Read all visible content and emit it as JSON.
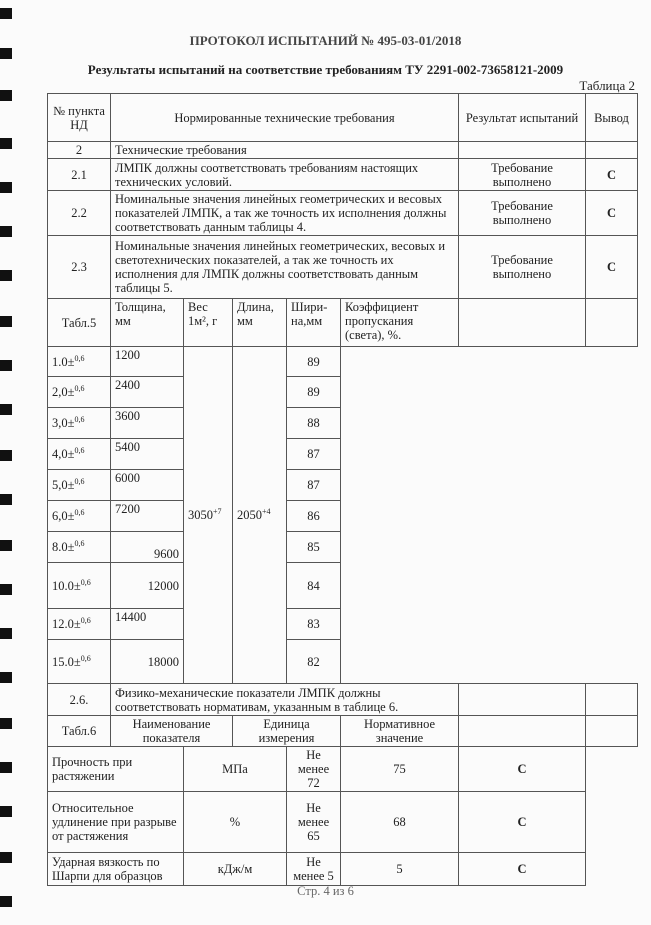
{
  "title": "ПРОТОКОЛ ИСПЫТАНИЙ № 495-03-01/2018",
  "subtitle": "Результаты испытаний на соответствие требованиям ТУ 2291-002-73658121-2009",
  "table_label": "Таблица 2",
  "header": {
    "num": "№ пункта НД",
    "req": "Нормированные технические требования",
    "result": "Результат испытаний",
    "verdict": "Вывод"
  },
  "rows": [
    {
      "num": "2",
      "req": "Технические требования",
      "result": "",
      "verdict": ""
    },
    {
      "num": "2.1",
      "req": "ЛМПК должны соответствовать требованиям настоящих технических условий.",
      "result": "Требование выполнено",
      "verdict": "С"
    },
    {
      "num": "2.2",
      "req": "Номинальные значения линейных геометрических и весовых показателей ЛМПК, а так же точность их исполнения должны соответствовать данным таблицы 4.",
      "result": "Требование выполнено",
      "verdict": "С"
    },
    {
      "num": "2.3",
      "req": "Номинальные значения линейных геометрических, весовых и светотехнических показателей, а так же точность их исполнения для ЛМПК должны соответствовать данным таблицы 5.",
      "result": "Требование выполнено",
      "verdict": "С"
    }
  ],
  "table5": {
    "label": "Табл.5",
    "headers": [
      "Толщина, мм",
      "Вес 1м",
      "², г",
      "Длина, мм",
      "Шири-на,мм",
      "Коэффициент пропускания (света), %."
    ],
    "length": "3050",
    "length_tol": "+7",
    "width": "2050",
    "width_tol": "+4",
    "tol": "±",
    "tol_sup": "0,6",
    "rows": [
      {
        "thickness": "1.0",
        "weight": "1200",
        "transmission": "89"
      },
      {
        "thickness": "2,0",
        "weight": "2400",
        "transmission": "89"
      },
      {
        "thickness": "3,0",
        "weight": "3600",
        "transmission": "88"
      },
      {
        "thickness": "4,0",
        "weight": "5400",
        "transmission": "87"
      },
      {
        "thickness": "5,0",
        "weight": "6000",
        "transmission": "87"
      },
      {
        "thickness": "6,0",
        "weight": "7200",
        "transmission": "86"
      },
      {
        "thickness": "8.0",
        "weight": "9600",
        "transmission": "85"
      },
      {
        "thickness": "10.0",
        "weight": "12000",
        "transmission": "84"
      },
      {
        "thickness": "12.0",
        "weight": "14400",
        "transmission": "83"
      },
      {
        "thickness": "15.0",
        "weight": "18000",
        "transmission": "82"
      }
    ]
  },
  "row26": {
    "num": "2.6.",
    "req": "Физико-механические показатели ЛМПК должны соответствовать нормативам, указанным в таблице 6."
  },
  "table6": {
    "label": "Табл.6",
    "headers": [
      "Наименование показателя",
      "Единица измерения",
      "Нормативное значение"
    ],
    "rows": [
      {
        "name": "Прочность при растяжении",
        "unit": "МПа",
        "norm": "Не менее 72",
        "result": "75",
        "verdict": "С"
      },
      {
        "name": "Относительное удлинение при разрыве от растяжения",
        "unit": "%",
        "norm": "Не менее 65",
        "result": "68",
        "verdict": "С"
      },
      {
        "name": "Ударная вязкость по Шарпи для образцов",
        "unit": "кДж/м",
        "norm": "Не менее 5",
        "result": "5",
        "verdict": "С"
      }
    ]
  },
  "footer": "Стр. 4 из 6"
}
